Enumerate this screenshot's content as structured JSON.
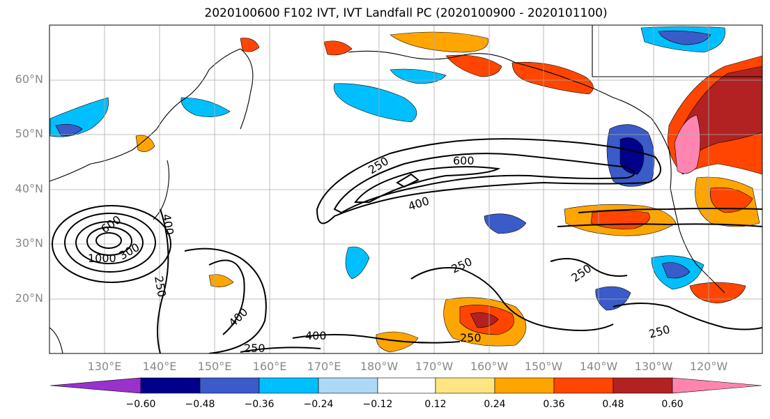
{
  "title": "2020100600 F102 IVT, IVT Landfall PC (2020100900 - 2020101100)",
  "latitude_labels": [
    "60°N",
    "50°N",
    "40°N",
    "30°N",
    "20°N"
  ],
  "longitude_labels": [
    "130°E",
    "140°E",
    "150°E",
    "160°E",
    "170°E",
    "180°W",
    "170°W",
    "160°W",
    "150°W",
    "140°W",
    "130°W",
    "120°W"
  ],
  "contour_labels": [
    "600",
    "250",
    "400",
    "600",
    "400",
    "300",
    "1000",
    "250",
    "250",
    "250",
    "250",
    "400",
    "400",
    "250",
    "250"
  ],
  "colorbar": {
    "colors": [
      "#9932CC",
      "#00008B",
      "#3A5BC8",
      "#00BFFF",
      "#ADD8F6",
      "#FFFFFF",
      "#FFE682",
      "#FFA500",
      "#FF4500",
      "#B22222",
      "#FF85B0"
    ],
    "tick_labels": [
      "−0.60",
      "−0.48",
      "−0.36",
      "−0.24",
      "−0.12",
      "0.12",
      "0.24",
      "0.36",
      "0.48",
      "0.60"
    ]
  }
}
